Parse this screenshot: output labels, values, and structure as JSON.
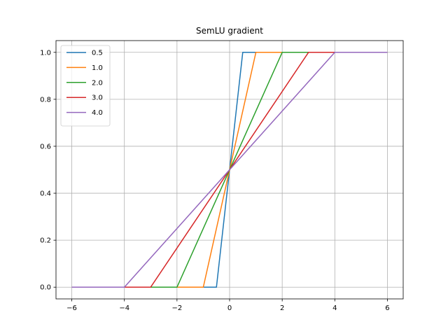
{
  "chart_data": {
    "type": "line",
    "title": "SemLU gradient",
    "xlabel": "",
    "ylabel": "",
    "xlim": [
      -6.6,
      6.6
    ],
    "ylim": [
      -0.05,
      1.05
    ],
    "xticks": [
      -6,
      -4,
      -2,
      0,
      2,
      4,
      6
    ],
    "xtick_labels": [
      "−6",
      "−4",
      "−2",
      "0",
      "2",
      "4",
      "6"
    ],
    "yticks": [
      0.0,
      0.2,
      0.4,
      0.6,
      0.8,
      1.0
    ],
    "ytick_labels": [
      "0.0",
      "0.2",
      "0.4",
      "0.6",
      "0.8",
      "1.0"
    ],
    "grid": true,
    "legend_position": "top-left",
    "series": [
      {
        "name": "0.5",
        "color": "#1f77b4",
        "x": [
          -6,
          -0.5,
          0.5,
          6
        ],
        "y": [
          0,
          0,
          1,
          1
        ]
      },
      {
        "name": "1.0",
        "color": "#ff7f0e",
        "x": [
          -6,
          -1,
          1,
          6
        ],
        "y": [
          0,
          0,
          1,
          1
        ]
      },
      {
        "name": "2.0",
        "color": "#2ca02c",
        "x": [
          -6,
          -2,
          2,
          6
        ],
        "y": [
          0,
          0,
          1,
          1
        ]
      },
      {
        "name": "3.0",
        "color": "#d62728",
        "x": [
          -6,
          -3,
          3,
          6
        ],
        "y": [
          0,
          0,
          1,
          1
        ]
      },
      {
        "name": "4.0",
        "color": "#9467bd",
        "x": [
          -6,
          -4,
          4,
          6
        ],
        "y": [
          0,
          0,
          1,
          1
        ]
      }
    ]
  }
}
